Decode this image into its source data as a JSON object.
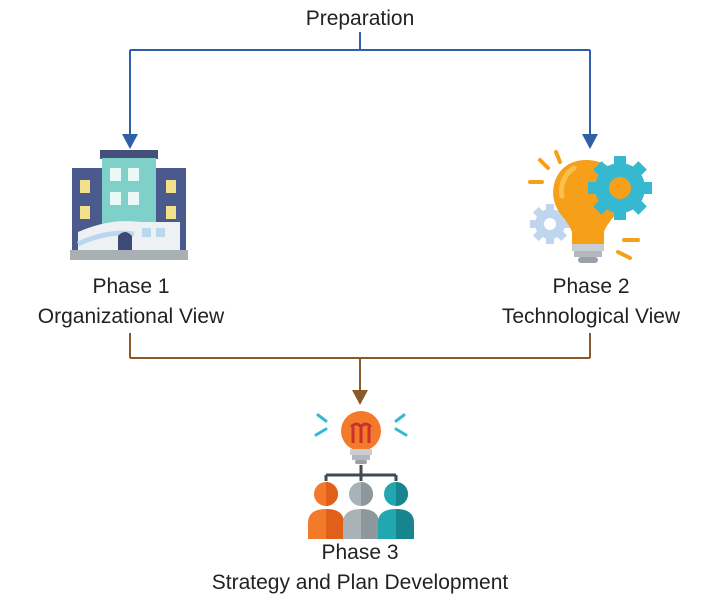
{
  "preparation_label": "Preparation",
  "phase1": {
    "title": "Phase 1",
    "subtitle": "Organizational View",
    "icon": "building-icon"
  },
  "phase2": {
    "title": "Phase 2",
    "subtitle": "Technological View",
    "icon": "lightbulb-gears-icon"
  },
  "phase3": {
    "title": "Phase 3",
    "subtitle": "Strategy and Plan Development",
    "icon": "team-idea-icon"
  },
  "colors": {
    "top_connector": "#2f5faa",
    "bottom_connector": "#8a5a2b",
    "building_dark": "#4a5a8c",
    "building_teal": "#7fd0c8",
    "bulb_orange": "#f6a01a",
    "gear_teal": "#36b8d0",
    "person_orange": "#f37a2a",
    "person_grey": "#a9b2b6",
    "person_teal": "#22a6b0"
  }
}
